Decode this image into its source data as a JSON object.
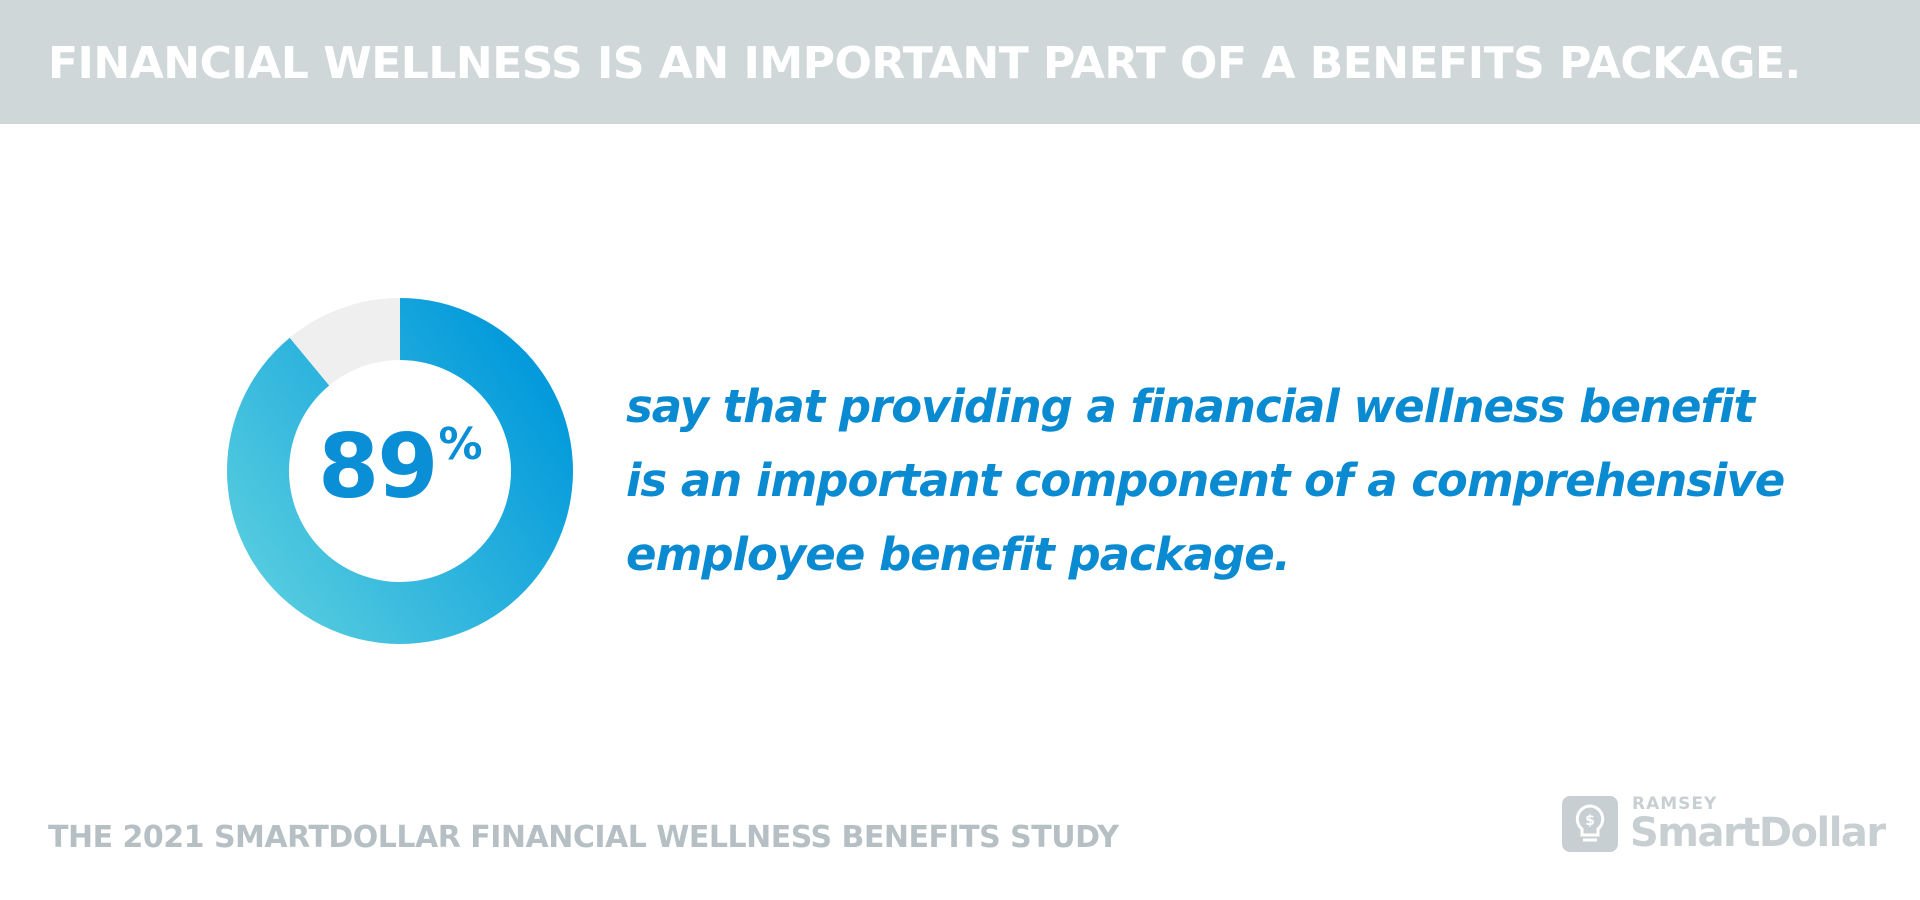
{
  "header": {
    "title": "FINANCIAL WELLNESS IS AN IMPORTANT PART OF A BENEFITS PACKAGE."
  },
  "chart_data": {
    "type": "pie",
    "variant": "donut",
    "values": [
      89,
      11
    ],
    "center_label": {
      "number": "89",
      "symbol": "%"
    },
    "colors": {
      "main_gradient_start": "#63d4e0",
      "main_gradient_end": "#0098db",
      "remainder": "#efefef"
    }
  },
  "statement": {
    "lines": [
      "say that providing a financial wellness benefit",
      "is an important component of a comprehensive",
      "employee benefit package."
    ]
  },
  "footer": {
    "source": "THE 2021 SMARTDOLLAR FINANCIAL WELLNESS BENEFITS STUDY"
  },
  "logo": {
    "small": "RAMSEY",
    "big": "SmartDollar",
    "icon": "lightbulb-dollar-icon"
  }
}
